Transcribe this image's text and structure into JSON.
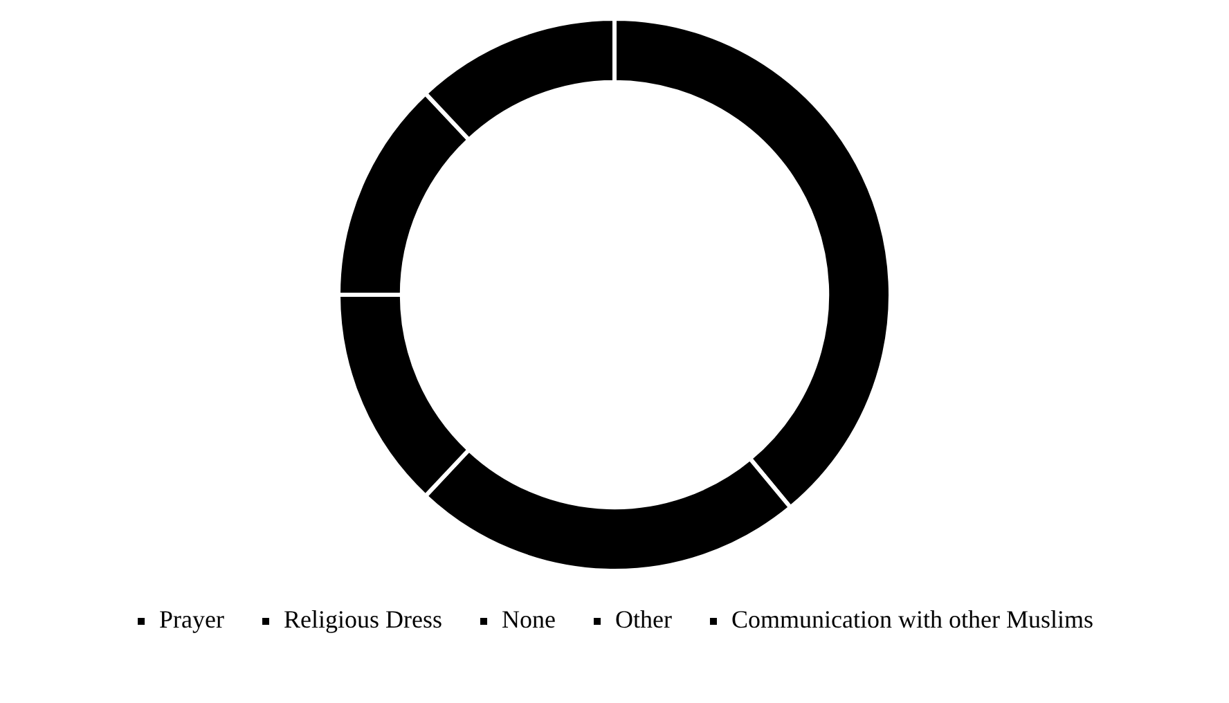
{
  "chart_data": {
    "type": "donut",
    "categories": [
      "Prayer",
      "Religious Dress",
      "None",
      "Other",
      "Communication with other Muslims"
    ],
    "values": [
      39,
      23,
      13,
      13,
      12
    ],
    "colors": [
      "#000000",
      "#000000",
      "#000000",
      "#000000",
      "#000000"
    ],
    "legend": "bottom"
  }
}
